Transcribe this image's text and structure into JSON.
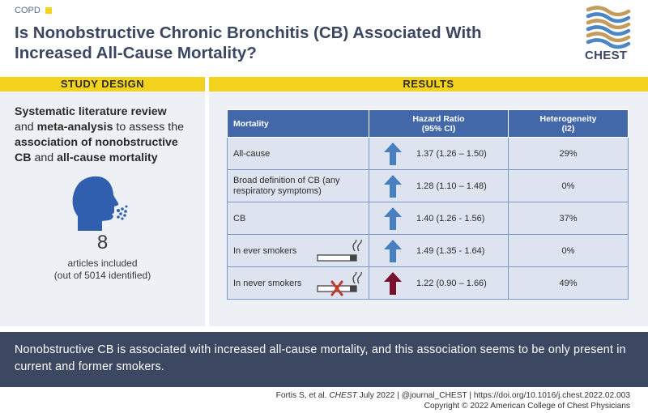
{
  "header": {
    "topic": "COPD",
    "title": "Is Nonobstructive Chronic Bronchitis (CB) Associated With Increased All-Cause Mortality?",
    "logo_text": "CHEST"
  },
  "study_design": {
    "band_label": "STUDY DESIGN",
    "text_1": "Systematic literature review",
    "text_2": "and ",
    "text_3": "meta-analysis",
    "text_4": " to assess the ",
    "text_5": "association of nonobstructive CB",
    "text_6": " and ",
    "text_7": "all-cause mortality",
    "article_count": "8",
    "articles_label": "articles included",
    "articles_sub": "(out of 5014 identified)"
  },
  "results": {
    "band_label": "RESULTS",
    "columns": {
      "mortality": "Mortality",
      "hr_line1": "Hazard Ratio",
      "hr_line2": "(95% CI)",
      "het_line1": "Heterogeneity",
      "het_line2": "(I2)"
    },
    "rows": [
      {
        "label": "All-cause",
        "hr": "1.37 (1.26 – 1.50)",
        "het": "29%",
        "arrow_color": "#4a7fbf"
      },
      {
        "label": "Broad definition of CB (any respiratory symptoms)",
        "hr": "1.28 (1.10 – 1.48)",
        "het": "0%",
        "arrow_color": "#4a7fbf"
      },
      {
        "label": "CB",
        "hr": "1.40 (1.26 - 1.56)",
        "het": "37%",
        "arrow_color": "#4a7fbf"
      },
      {
        "label": "In ever smokers",
        "hr": "1.49 (1.35 - 1.64)",
        "het": "0%",
        "arrow_color": "#4a7fbf"
      },
      {
        "label": "In never smokers",
        "hr": "1.22 (0.90 – 1.66)",
        "het": "49%",
        "arrow_color": "#7a1030"
      }
    ]
  },
  "conclusion": "Nonobstructive CB is associated with increased all-cause mortality, and this association seems to be only present in current and former smokers.",
  "footer": {
    "authors": "Fortis S, et al. ",
    "journal": "CHEST",
    "date": " July 2022",
    "sep": "  |  ",
    "handle": "@journal_CHEST",
    "doi": "https://doi.org/10.1016/j.chest.2022.02.003",
    "copyright": "Copyright © 2022 American College of Chest Physicians"
  },
  "colors": {
    "accent_yellow": "#f2d21d",
    "navy": "#3c4862",
    "table_header": "#4368aa",
    "arrow_up": "#4a7fbf",
    "arrow_nonsig": "#7a1030"
  }
}
